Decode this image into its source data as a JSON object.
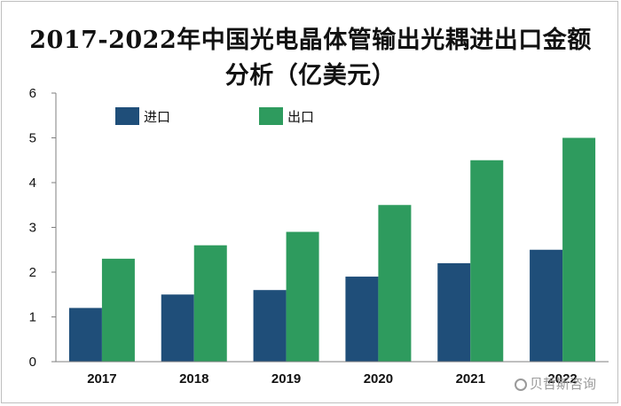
{
  "chart_data": {
    "type": "bar",
    "title": "2017-2022年中国光电晶体管输出光耦进出口金额分析（亿美元）",
    "title_lines": [
      "2017-2022年中国光电晶体管输出光耦进出口金额",
      "分析（亿美元）"
    ],
    "categories": [
      "2017",
      "2018",
      "2019",
      "2020",
      "2021",
      "2022"
    ],
    "series": [
      {
        "name": "进口",
        "color": "#1f4e79",
        "values": [
          1.2,
          1.5,
          1.6,
          1.9,
          2.2,
          2.5
        ]
      },
      {
        "name": "出口",
        "color": "#2e9b5e",
        "values": [
          2.3,
          2.6,
          2.9,
          3.5,
          4.5,
          5.0
        ]
      }
    ],
    "ylim": [
      0,
      6
    ],
    "yticks": [
      0,
      1,
      2,
      3,
      4,
      5,
      6
    ],
    "grid": false,
    "legend": "top-left"
  },
  "watermark": {
    "text": "贝哲斯咨询"
  }
}
